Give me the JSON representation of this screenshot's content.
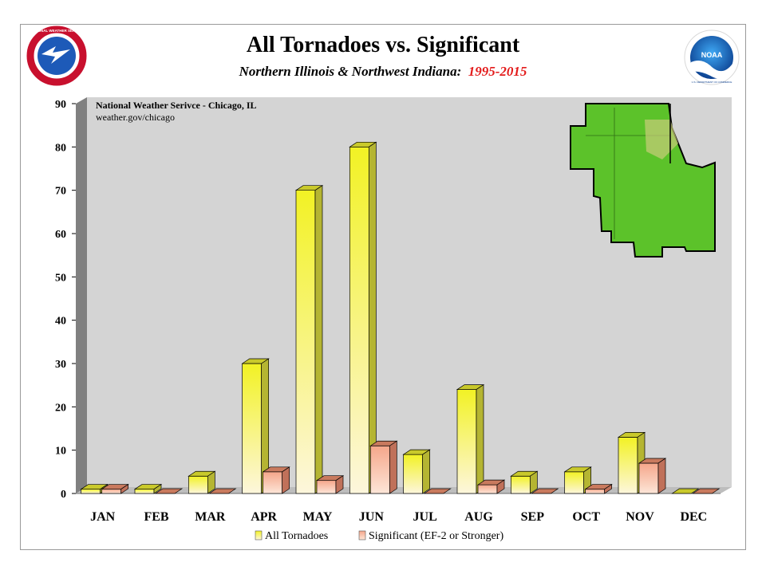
{
  "header": {
    "title": "All Tornadoes vs. Significant",
    "subtitle_region": "Northern Illinois & Northwest Indiana:",
    "subtitle_years": "1995-2015"
  },
  "logos": {
    "nws": "NATIONAL WEATHER SERVICE",
    "noaa": "NOAA",
    "noaa_ring": "U.S. DEPARTMENT OF COMMERCE"
  },
  "source": {
    "line1": "National Weather Serivce - Chicago, IL",
    "line2": "weather.gov/chicago"
  },
  "colors": {
    "all_top": "#f2f224",
    "all_bottom": "#fdf6dc",
    "sig_top": "#f5a68a",
    "sig_bottom": "#fde6d8",
    "plot_bg": "#d4d4d4",
    "map_green": "#5cc22a"
  },
  "chart_data": {
    "type": "bar",
    "categories": [
      "JAN",
      "FEB",
      "MAR",
      "APR",
      "MAY",
      "JUN",
      "JUL",
      "AUG",
      "SEP",
      "OCT",
      "NOV",
      "DEC"
    ],
    "series": [
      {
        "name": "All Tornadoes",
        "values": [
          1,
          1,
          4,
          30,
          70,
          80,
          9,
          24,
          4,
          5,
          13,
          0
        ]
      },
      {
        "name": "Significant (EF-2 or Stronger)",
        "values": [
          1,
          0,
          0,
          5,
          3,
          11,
          0,
          2,
          0,
          1,
          7,
          0
        ]
      }
    ],
    "ylim": [
      0,
      90
    ],
    "yticks": [
      0,
      10,
      20,
      30,
      40,
      50,
      60,
      70,
      80,
      90
    ],
    "legend_position": "bottom",
    "grid": false
  }
}
